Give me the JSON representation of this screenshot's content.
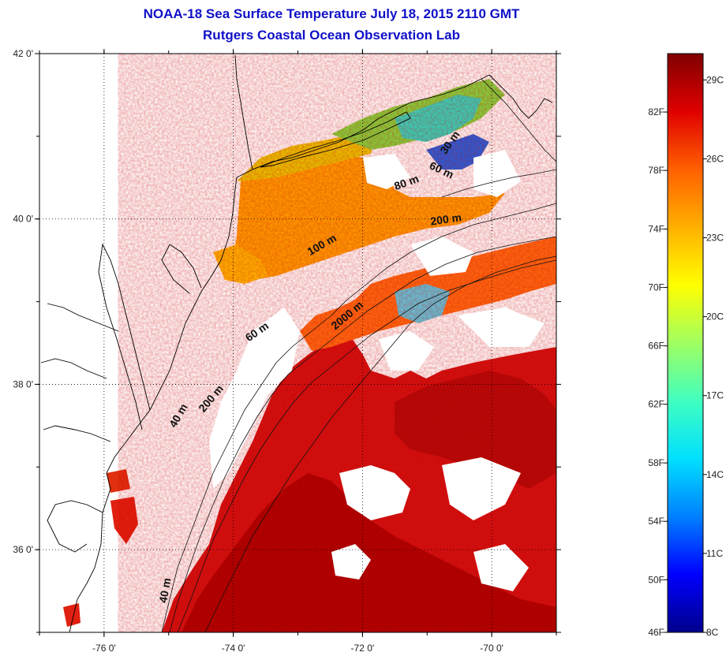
{
  "titles": {
    "line1": "NOAA-18 Sea Surface Temperature July 18, 2015 2110 GMT",
    "line2": "Rutgers Coastal Ocean Observation Lab"
  },
  "map": {
    "lon_range": [
      -77.0,
      -69.0
    ],
    "lat_range": [
      35.0,
      42.0
    ],
    "lon_ticks": [
      {
        "value": -76,
        "label": "-76 0'"
      },
      {
        "value": -74,
        "label": "-74 0'"
      },
      {
        "value": -72,
        "label": "-72 0'"
      },
      {
        "value": -70,
        "label": "-70 0'"
      }
    ],
    "lat_ticks": [
      {
        "value": 42,
        "label": "42 0'"
      },
      {
        "value": 40,
        "label": "40 0'"
      },
      {
        "value": 38,
        "label": "38 0'"
      },
      {
        "value": 36,
        "label": "36 0'"
      }
    ],
    "grid": "dotted",
    "contour_labels": [
      {
        "text": "30 m",
        "lon": -70.6,
        "lat": 40.9,
        "angle": -55
      },
      {
        "text": "60 m",
        "lon": -70.8,
        "lat": 40.55,
        "angle": 25
      },
      {
        "text": "80 m",
        "lon": -71.3,
        "lat": 40.4,
        "angle": -20
      },
      {
        "text": "200 m",
        "lon": -70.7,
        "lat": 39.95,
        "angle": -8
      },
      {
        "text": "100 m",
        "lon": -72.6,
        "lat": 39.65,
        "angle": -30
      },
      {
        "text": "2000 m",
        "lon": -72.2,
        "lat": 38.8,
        "angle": -40
      },
      {
        "text": "60 m",
        "lon": -73.6,
        "lat": 38.6,
        "angle": -35
      },
      {
        "text": "200 m",
        "lon": -74.3,
        "lat": 37.8,
        "angle": -50
      },
      {
        "text": "40 m",
        "lon": -74.8,
        "lat": 37.6,
        "angle": -60
      },
      {
        "text": "40 m",
        "lon": -75.0,
        "lat": 35.5,
        "angle": -80
      }
    ]
  },
  "colorbar": {
    "range_c": [
      8,
      30
    ],
    "stops": [
      "#00008c",
      "#0000ff",
      "#0080ff",
      "#00e0ff",
      "#40ffc0",
      "#a0ff60",
      "#ffff00",
      "#ffb000",
      "#ff6000",
      "#e00000",
      "#800000"
    ],
    "fahrenheit_labels": [
      {
        "value_c": 7.78,
        "label": "46F"
      },
      {
        "value_c": 10.0,
        "label": "50F"
      },
      {
        "value_c": 12.22,
        "label": "54F"
      },
      {
        "value_c": 14.44,
        "label": "58F"
      },
      {
        "value_c": 16.67,
        "label": "62F"
      },
      {
        "value_c": 18.89,
        "label": "66F"
      },
      {
        "value_c": 21.11,
        "label": "70F"
      },
      {
        "value_c": 23.33,
        "label": "74F"
      },
      {
        "value_c": 25.56,
        "label": "78F"
      },
      {
        "value_c": 27.78,
        "label": "82F"
      }
    ],
    "celsius_labels": [
      {
        "value_c": 8,
        "label": "8C"
      },
      {
        "value_c": 11,
        "label": "11C"
      },
      {
        "value_c": 14,
        "label": "14C"
      },
      {
        "value_c": 17,
        "label": "17C"
      },
      {
        "value_c": 20,
        "label": "20C"
      },
      {
        "value_c": 23,
        "label": "23C"
      },
      {
        "value_c": 26,
        "label": "26C"
      },
      {
        "value_c": 29,
        "label": "29C"
      }
    ]
  }
}
